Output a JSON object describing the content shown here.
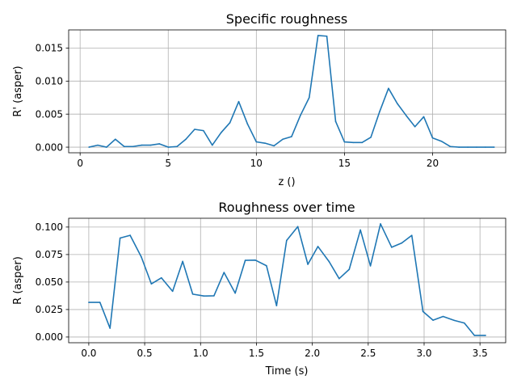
{
  "chart_data": [
    {
      "type": "line",
      "title": "Specific roughness",
      "xlabel": "z ()",
      "ylabel": "R' (asper)",
      "xlim": [
        -0.65,
        24.15
      ],
      "ylim": [
        -0.00085,
        0.01775
      ],
      "xticks": [
        0,
        5,
        10,
        15,
        20
      ],
      "xtick_labels": [
        "0",
        "5",
        "10",
        "15",
        "20"
      ],
      "yticks": [
        0.0,
        0.005,
        0.01,
        0.015
      ],
      "ytick_labels": [
        "0.000",
        "0.005",
        "0.010",
        "0.015"
      ],
      "grid": true,
      "color": "#1f77b4",
      "x": [
        0.5,
        1.0,
        1.5,
        2.0,
        2.5,
        3.0,
        3.5,
        4.0,
        4.5,
        5.0,
        5.5,
        6.0,
        6.5,
        7.0,
        7.5,
        8.0,
        8.5,
        9.0,
        9.5,
        10.0,
        10.5,
        11.0,
        11.5,
        12.0,
        12.5,
        13.0,
        13.5,
        14.0,
        14.5,
        15.0,
        15.5,
        16.0,
        16.5,
        17.0,
        17.5,
        18.0,
        18.5,
        19.0,
        19.5,
        20.0,
        20.5,
        21.0,
        21.5,
        22.0,
        22.5,
        23.0,
        23.5
      ],
      "y": [
        0.0,
        0.0003,
        0.0,
        0.0012,
        0.0001,
        0.0001,
        0.0003,
        0.0003,
        0.0005,
        0.0,
        0.0001,
        0.0012,
        0.0027,
        0.0025,
        0.0003,
        0.0022,
        0.0037,
        0.0069,
        0.0035,
        0.0008,
        0.0006,
        0.0002,
        0.0012,
        0.0016,
        0.0048,
        0.0075,
        0.0169,
        0.0168,
        0.0039,
        0.0008,
        0.0007,
        0.0007,
        0.0015,
        0.0054,
        0.0089,
        0.0066,
        0.0048,
        0.0031,
        0.0046,
        0.0014,
        0.0009,
        0.0001,
        0.0,
        0.0,
        0.0,
        0.0,
        0.0
      ]
    },
    {
      "type": "line",
      "title": "Roughness over time",
      "xlabel": "Time (s)",
      "ylabel": "R (asper)",
      "xlim": [
        -0.18,
        3.73
      ],
      "ylim": [
        -0.0052,
        0.108
      ],
      "xticks": [
        0.0,
        0.5,
        1.0,
        1.5,
        2.0,
        2.5,
        3.0,
        3.5
      ],
      "xtick_labels": [
        "0.0",
        "0.5",
        "1.0",
        "1.5",
        "2.0",
        "2.5",
        "3.0",
        "3.5"
      ],
      "yticks": [
        0.0,
        0.025,
        0.05,
        0.075,
        0.1
      ],
      "ytick_labels": [
        "0.000",
        "0.025",
        "0.050",
        "0.075",
        "0.100"
      ],
      "grid": true,
      "color": "#1f77b4",
      "x": [
        0.0,
        0.1,
        0.19,
        0.28,
        0.37,
        0.47,
        0.56,
        0.65,
        0.75,
        0.84,
        0.93,
        1.03,
        1.12,
        1.21,
        1.31,
        1.4,
        1.49,
        1.59,
        1.68,
        1.77,
        1.87,
        1.96,
        2.05,
        2.15,
        2.24,
        2.33,
        2.43,
        2.52,
        2.61,
        2.71,
        2.8,
        2.89,
        2.99,
        3.08,
        3.17,
        3.27,
        3.36,
        3.45,
        3.55
      ],
      "y": [
        0.0315,
        0.0315,
        0.008,
        0.09,
        0.0925,
        0.0728,
        0.0483,
        0.0538,
        0.0416,
        0.0688,
        0.039,
        0.0373,
        0.0375,
        0.0587,
        0.0399,
        0.0697,
        0.0699,
        0.0648,
        0.0285,
        0.0878,
        0.1004,
        0.0661,
        0.0823,
        0.0686,
        0.0531,
        0.0615,
        0.0974,
        0.0647,
        0.1029,
        0.0816,
        0.0855,
        0.0924,
        0.0232,
        0.0153,
        0.0187,
        0.0151,
        0.0127,
        0.0015,
        0.0015
      ]
    }
  ]
}
